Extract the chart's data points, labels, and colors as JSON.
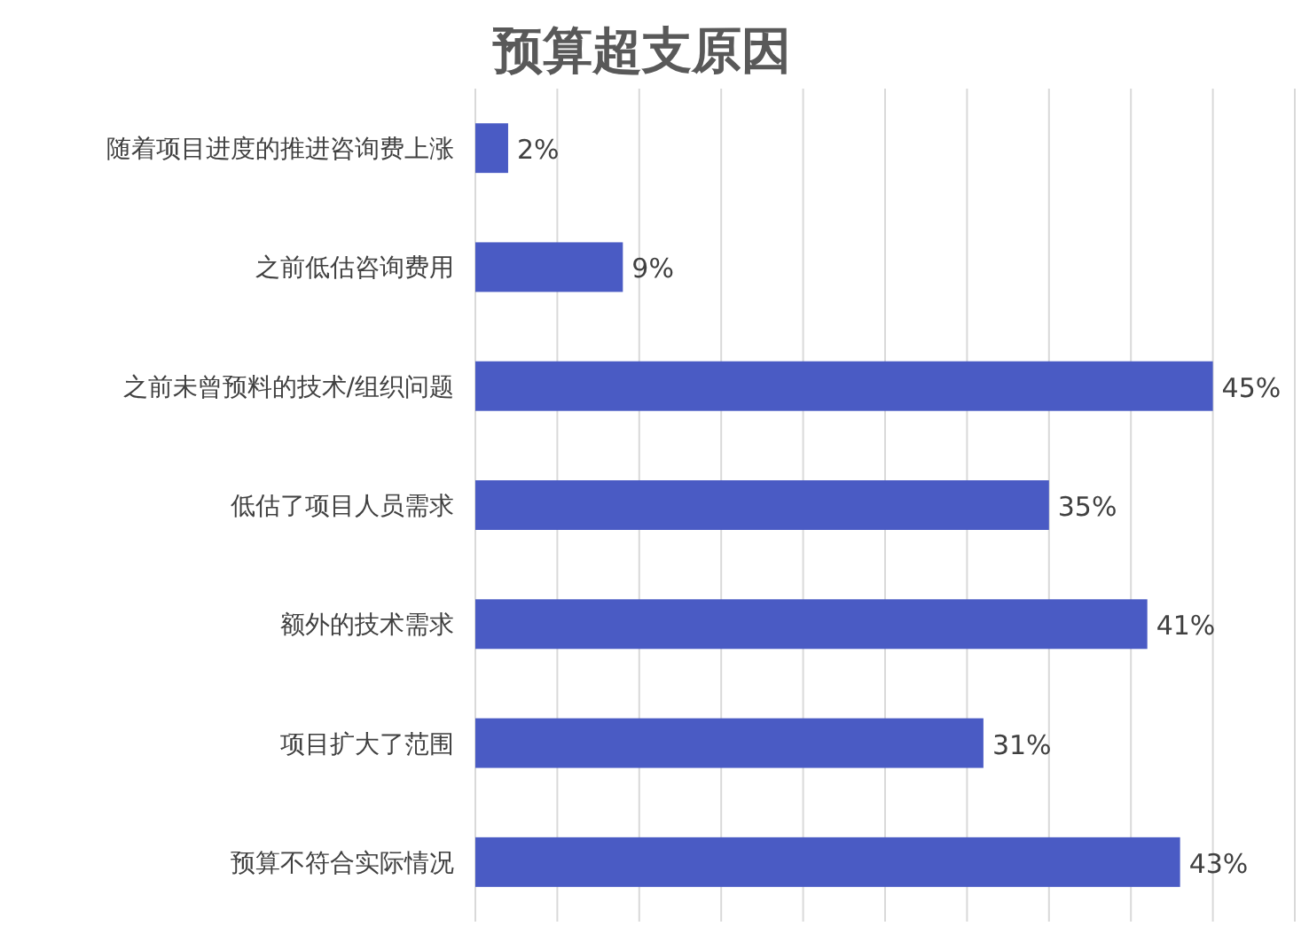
{
  "chart_data": {
    "type": "bar",
    "orientation": "horizontal",
    "title": "预算超支原因",
    "categories": [
      "随着项目进度的推进咨询费上涨",
      "之前低估咨询费用",
      "之前未曾预料的技术/组织问题",
      "低估了项目人员需求",
      "额外的技术需求",
      "项目扩大了范围",
      "预算不符合实际情况"
    ],
    "values": [
      2,
      9,
      45,
      35,
      41,
      31,
      43
    ],
    "value_labels": [
      "2%",
      "9%",
      "45%",
      "35%",
      "41%",
      "31%",
      "43%"
    ],
    "color": "#4a5bc4",
    "xlim": [
      0,
      50
    ],
    "xticks": [
      {
        "value": 0,
        "label": null
      },
      {
        "value": 5,
        "label": null
      },
      {
        "value": 10,
        "label": null
      },
      {
        "value": 15,
        "label": null
      },
      {
        "value": 20,
        "label": null
      },
      {
        "value": 25,
        "label": null
      },
      {
        "value": 30,
        "label": null
      },
      {
        "value": 35,
        "label": null
      },
      {
        "value": 40,
        "label": null
      },
      {
        "value": 45,
        "label": null
      },
      {
        "value": 50,
        "label": null
      }
    ],
    "grid": "x",
    "tick_labels": "y"
  }
}
